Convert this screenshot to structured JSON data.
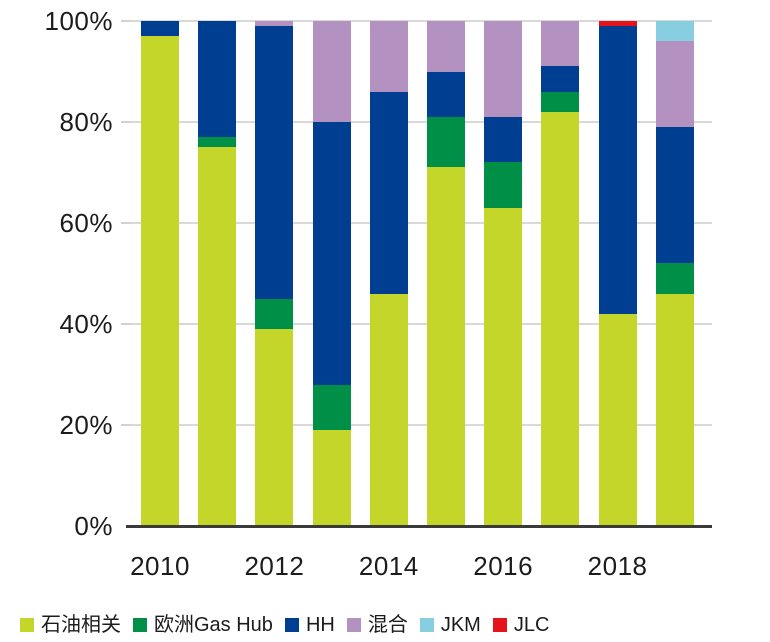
{
  "chart_data": {
    "type": "bar",
    "stacked": true,
    "percent": true,
    "title": "",
    "xlabel": "",
    "ylabel": "",
    "ylim": [
      0,
      100
    ],
    "grid": true,
    "legend_position": "bottom",
    "categories": [
      "2010",
      "2011",
      "2012",
      "2013",
      "2014",
      "2015",
      "2016",
      "2017",
      "2018",
      "2019"
    ],
    "x_tick_labels": [
      {
        "label": "2010",
        "bar_index": 0
      },
      {
        "label": "2012",
        "bar_index": 2
      },
      {
        "label": "2014",
        "bar_index": 4
      },
      {
        "label": "2016",
        "bar_index": 6
      },
      {
        "label": "2018",
        "bar_index": 8
      }
    ],
    "y_ticks": [
      {
        "value": 0,
        "label": "0%"
      },
      {
        "value": 20,
        "label": "20%"
      },
      {
        "value": 40,
        "label": "40%"
      },
      {
        "value": 60,
        "label": "60%"
      },
      {
        "value": 80,
        "label": "80%"
      },
      {
        "value": 100,
        "label": "100%"
      }
    ],
    "series": [
      {
        "name": "石油相关",
        "color": "#c4d62a",
        "values": [
          97,
          75,
          39,
          19,
          46,
          71,
          63,
          82,
          42,
          46
        ]
      },
      {
        "name": "欧洲Gas Hub",
        "color": "#008f46",
        "values": [
          0,
          2,
          6,
          9,
          0,
          10,
          9,
          4,
          0,
          6
        ]
      },
      {
        "name": "HH",
        "color": "#003e92",
        "values": [
          3,
          23,
          54,
          52,
          40,
          9,
          9,
          5,
          57,
          27
        ]
      },
      {
        "name": "混合",
        "color": "#b392c2",
        "values": [
          0,
          0,
          1,
          20,
          14,
          10,
          19,
          9,
          0,
          17
        ]
      },
      {
        "name": "JKM",
        "color": "#87cfe0",
        "values": [
          0,
          0,
          0,
          0,
          0,
          0,
          0,
          0,
          0,
          4
        ]
      },
      {
        "name": "JLC",
        "color": "#e4131c",
        "values": [
          0,
          0,
          0,
          0,
          0,
          0,
          0,
          0,
          1,
          0
        ]
      }
    ],
    "colors": {
      "gridline": "#d9d9d9",
      "axis_line": "#3a3a3a",
      "text": "#1c1c1c"
    }
  }
}
